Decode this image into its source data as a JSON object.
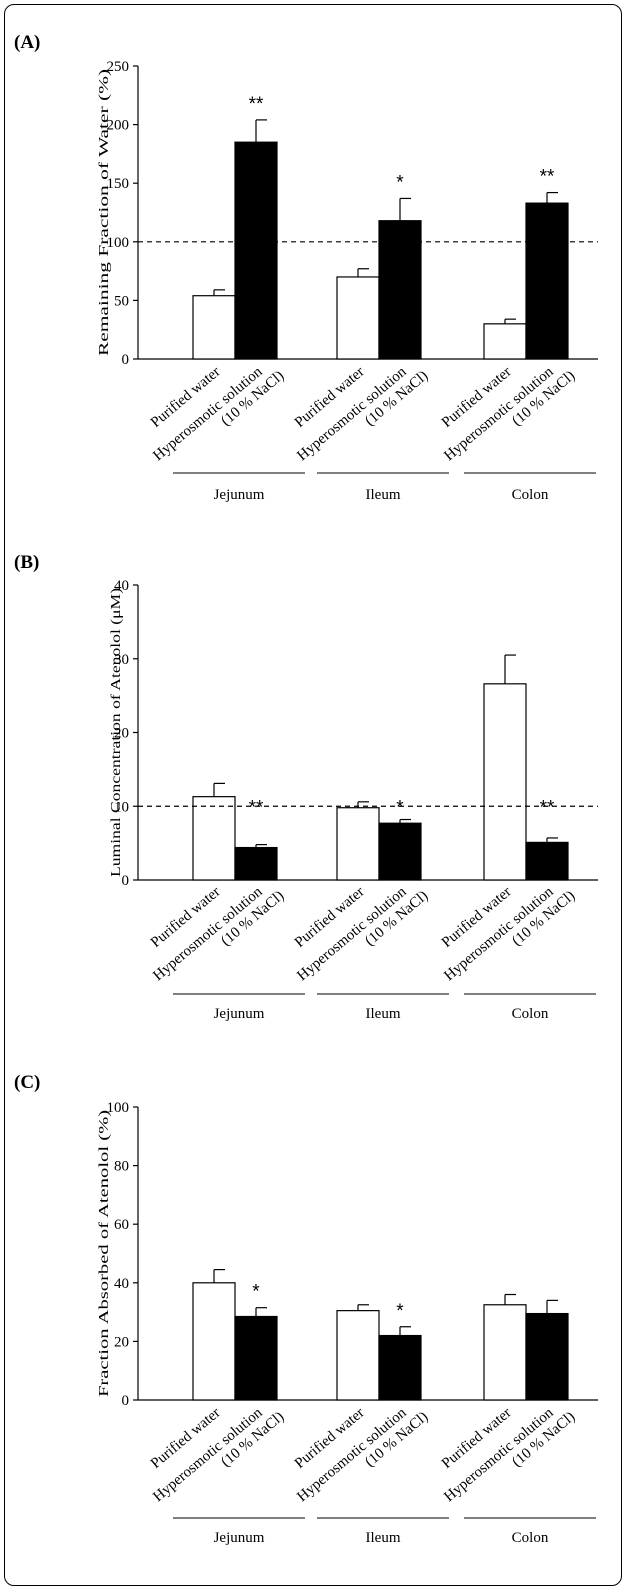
{
  "chart_data": [
    {
      "panel_label": "(A)",
      "type": "bar",
      "ylabel": "Remaining  Fraction of Water (%)",
      "ylim": [
        0,
        250
      ],
      "yticks": [
        0,
        50,
        100,
        150,
        200,
        250
      ],
      "reference_line": 100,
      "x_tick_labels": [
        "Purified  water",
        "Hyperosmotic solution (10 % NaCl)"
      ],
      "groups": [
        "Jejunum",
        "Ileum",
        "Colon"
      ],
      "series": [
        {
          "name": "Purified  water",
          "color": "#ffffff",
          "values": [
            54,
            70,
            30
          ],
          "errors": [
            5,
            7,
            4
          ],
          "significance": [
            "",
            "",
            ""
          ]
        },
        {
          "name": "Hyperosmotic solution (10 % NaCl)",
          "color": "#000000",
          "values": [
            185,
            118,
            133
          ],
          "errors": [
            19,
            19,
            9
          ],
          "significance": [
            "**",
            "*",
            "**"
          ]
        }
      ]
    },
    {
      "panel_label": "(B)",
      "type": "bar",
      "ylabel": "Luminal Concentration of Atenolol (μM)",
      "ylim": [
        0,
        40
      ],
      "yticks": [
        0,
        10,
        20,
        30,
        40
      ],
      "reference_line": 10,
      "x_tick_labels": [
        "Purified  water",
        "Hyperosmotic solution (10 % NaCl)"
      ],
      "groups": [
        "Jejunum",
        "Ileum",
        "Colon"
      ],
      "series": [
        {
          "name": "Purified  water",
          "color": "#ffffff",
          "values": [
            11.3,
            9.8,
            26.6
          ],
          "errors": [
            1.8,
            0.8,
            3.9
          ],
          "significance": [
            "",
            "",
            ""
          ]
        },
        {
          "name": "Hyperosmotic solution (10 % NaCl)",
          "color": "#000000",
          "values": [
            4.4,
            7.7,
            5.1
          ],
          "errors": [
            0.4,
            0.5,
            0.6
          ],
          "significance": [
            "**",
            "*",
            "**"
          ]
        }
      ]
    },
    {
      "panel_label": "(C)",
      "type": "bar",
      "ylabel": "Fraction Absorbed of Atenolol (%)",
      "ylim": [
        0,
        100
      ],
      "yticks": [
        0,
        20,
        40,
        60,
        80,
        100
      ],
      "reference_line": null,
      "x_tick_labels": [
        "Purified  water",
        "Hyperosmotic solution (10 % NaCl)"
      ],
      "groups": [
        "Jejunum",
        "Ileum",
        "Colon"
      ],
      "series": [
        {
          "name": "Purified  water",
          "color": "#ffffff",
          "values": [
            40,
            30.5,
            32.5
          ],
          "errors": [
            4.5,
            2,
            3.5
          ],
          "significance": [
            "",
            "",
            ""
          ]
        },
        {
          "name": "Hyperosmotic solution (10 % NaCl)",
          "color": "#000000",
          "values": [
            28.5,
            22,
            29.5
          ],
          "errors": [
            3,
            3,
            4.5
          ],
          "significance": [
            "*",
            "*",
            ""
          ]
        }
      ]
    }
  ]
}
